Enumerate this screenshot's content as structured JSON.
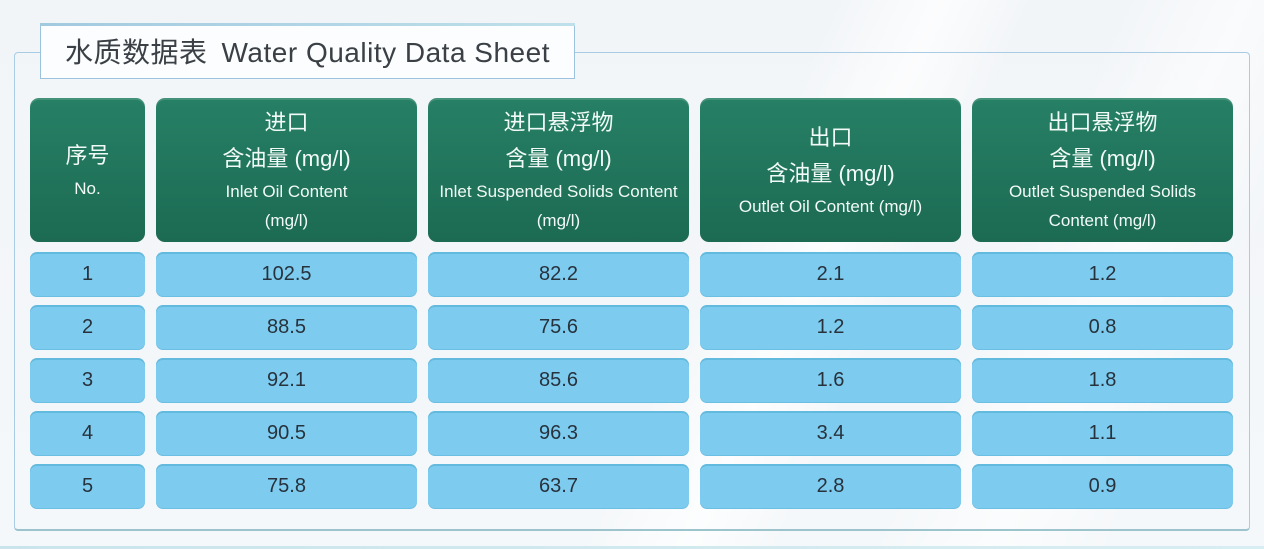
{
  "title": {
    "cn": "水质数据表",
    "en": "Water Quality Data Sheet"
  },
  "colors": {
    "header_green": "#1e6f56",
    "row_blue": "#7dcbee",
    "frame_border_blue": "#a9cce4",
    "accent_teal": "#9dc3cd",
    "row_text": "#27323d"
  },
  "table": {
    "columns": [
      {
        "cn": [
          "序号"
        ],
        "en": [
          "No."
        ]
      },
      {
        "cn": [
          "进口",
          "含油量 (mg/l)"
        ],
        "en": [
          "Inlet Oil Content",
          "(mg/l)"
        ]
      },
      {
        "cn": [
          "进口悬浮物",
          "含量 (mg/l)"
        ],
        "en": [
          "Inlet Suspended Solids Content",
          "(mg/l)"
        ]
      },
      {
        "cn": [
          "出口",
          "含油量 (mg/l)"
        ],
        "en": [
          "Outlet Oil Content (mg/l)"
        ]
      },
      {
        "cn": [
          "出口悬浮物",
          "含量 (mg/l)"
        ],
        "en": [
          "Outlet Suspended Solids",
          "Content (mg/l)"
        ]
      }
    ],
    "rows": [
      [
        "1",
        "102.5",
        "82.2",
        "2.1",
        "1.2"
      ],
      [
        "2",
        "88.5",
        "75.6",
        "1.2",
        "0.8"
      ],
      [
        "3",
        "92.1",
        "85.6",
        "1.6",
        "1.8"
      ],
      [
        "4",
        "90.5",
        "96.3",
        "3.4",
        "1.1"
      ],
      [
        "5",
        "75.8",
        "63.7",
        "2.8",
        "0.9"
      ]
    ]
  },
  "chart_data": {
    "type": "table",
    "title": "水质数据表 Water Quality Data Sheet",
    "columns": [
      "序号 No.",
      "进口 含油量 (mg/l) Inlet Oil Content (mg/l)",
      "进口悬浮物 含量 (mg/l) Inlet Suspended Solids Content (mg/l)",
      "出口 含油量 (mg/l) Outlet Oil Content (mg/l)",
      "出口悬浮物 含量 (mg/l) Outlet Suspended Solids Content (mg/l)"
    ],
    "rows": [
      [
        1,
        102.5,
        82.2,
        2.1,
        1.2
      ],
      [
        2,
        88.5,
        75.6,
        1.2,
        0.8
      ],
      [
        3,
        92.1,
        85.6,
        1.6,
        1.8
      ],
      [
        4,
        90.5,
        96.3,
        3.4,
        1.1
      ],
      [
        5,
        75.8,
        63.7,
        2.8,
        0.9
      ]
    ]
  }
}
